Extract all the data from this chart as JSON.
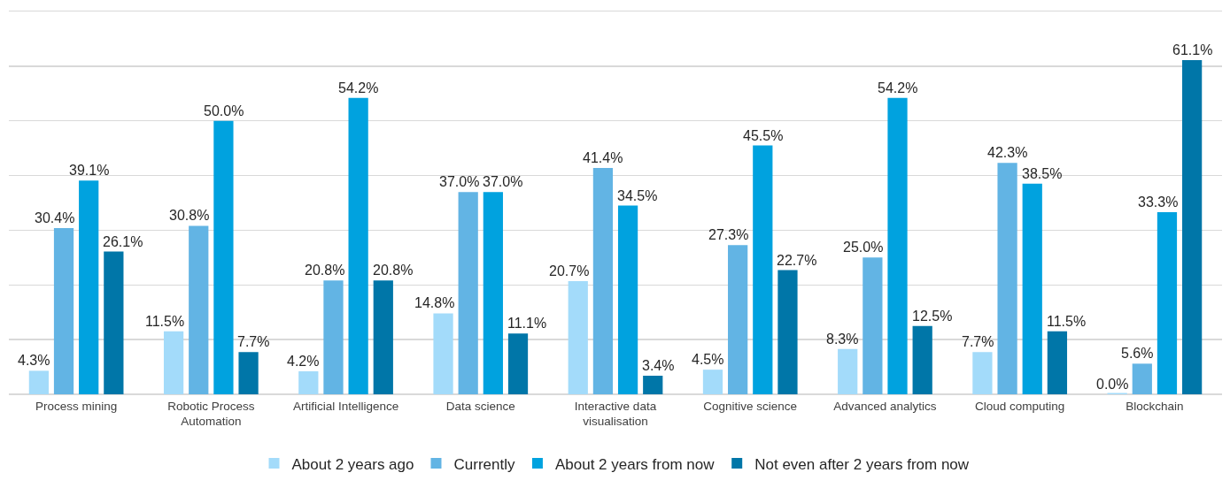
{
  "chart_data": {
    "type": "bar",
    "categories": [
      "Process mining",
      "Robotic Process\nAutomation",
      "Artificial Intelligence",
      "Data science",
      "Interactive data\nvisualisation",
      "Cognitive science",
      "Advanced analytics",
      "Cloud computing",
      "Blockchain"
    ],
    "series": [
      {
        "name": "About 2 years ago",
        "color": "#a3dbfa",
        "values": [
          4.3,
          11.5,
          4.2,
          14.8,
          20.7,
          4.5,
          8.3,
          7.7,
          0.0
        ],
        "value_labels": [
          "4.3%",
          "11.5%",
          "4.2%",
          "14.8%",
          "20.7%",
          "4.5%",
          "8.3%",
          "7.7%",
          "0.0%"
        ]
      },
      {
        "name": "Currently",
        "color": "#62b4e4",
        "values": [
          30.4,
          30.8,
          20.8,
          37.0,
          41.4,
          27.3,
          25.0,
          42.3,
          5.6
        ],
        "value_labels": [
          "30.4%",
          "30.8%",
          "20.8%",
          "37.0%",
          "41.4%",
          "27.3%",
          "25.0%",
          "42.3%",
          "5.6%"
        ]
      },
      {
        "name": "About 2 years from now",
        "color": "#00a2df",
        "values": [
          39.1,
          50.0,
          54.2,
          37.0,
          34.5,
          45.5,
          54.2,
          38.5,
          33.3
        ],
        "value_labels": [
          "39.1%",
          "50.0%",
          "54.2%",
          "37.0%",
          "34.5%",
          "45.5%",
          "54.2%",
          "38.5%",
          "33.3%"
        ]
      },
      {
        "name": "Not even after 2 years from now",
        "color": "#0076a8",
        "values": [
          26.1,
          7.7,
          20.8,
          11.1,
          3.4,
          22.7,
          12.5,
          11.5,
          61.1
        ],
        "value_labels": [
          "26.1%",
          "7.7%",
          "20.8%",
          "11.1%",
          "3.4%",
          "22.7%",
          "12.5%",
          "11.5%",
          "61.1%"
        ]
      }
    ],
    "ylim": [
      0,
      70
    ],
    "yticks": [
      {
        "value": 0,
        "label": null
      },
      {
        "value": 10,
        "label": null
      },
      {
        "value": 20,
        "label": null
      },
      {
        "value": 30,
        "label": null
      },
      {
        "value": 40,
        "label": null
      },
      {
        "value": 50,
        "label": null
      },
      {
        "value": 60,
        "label": null
      },
      {
        "value": 70,
        "label": null
      }
    ],
    "tick_labels": "x",
    "grid": "y",
    "legend": "bottom"
  }
}
